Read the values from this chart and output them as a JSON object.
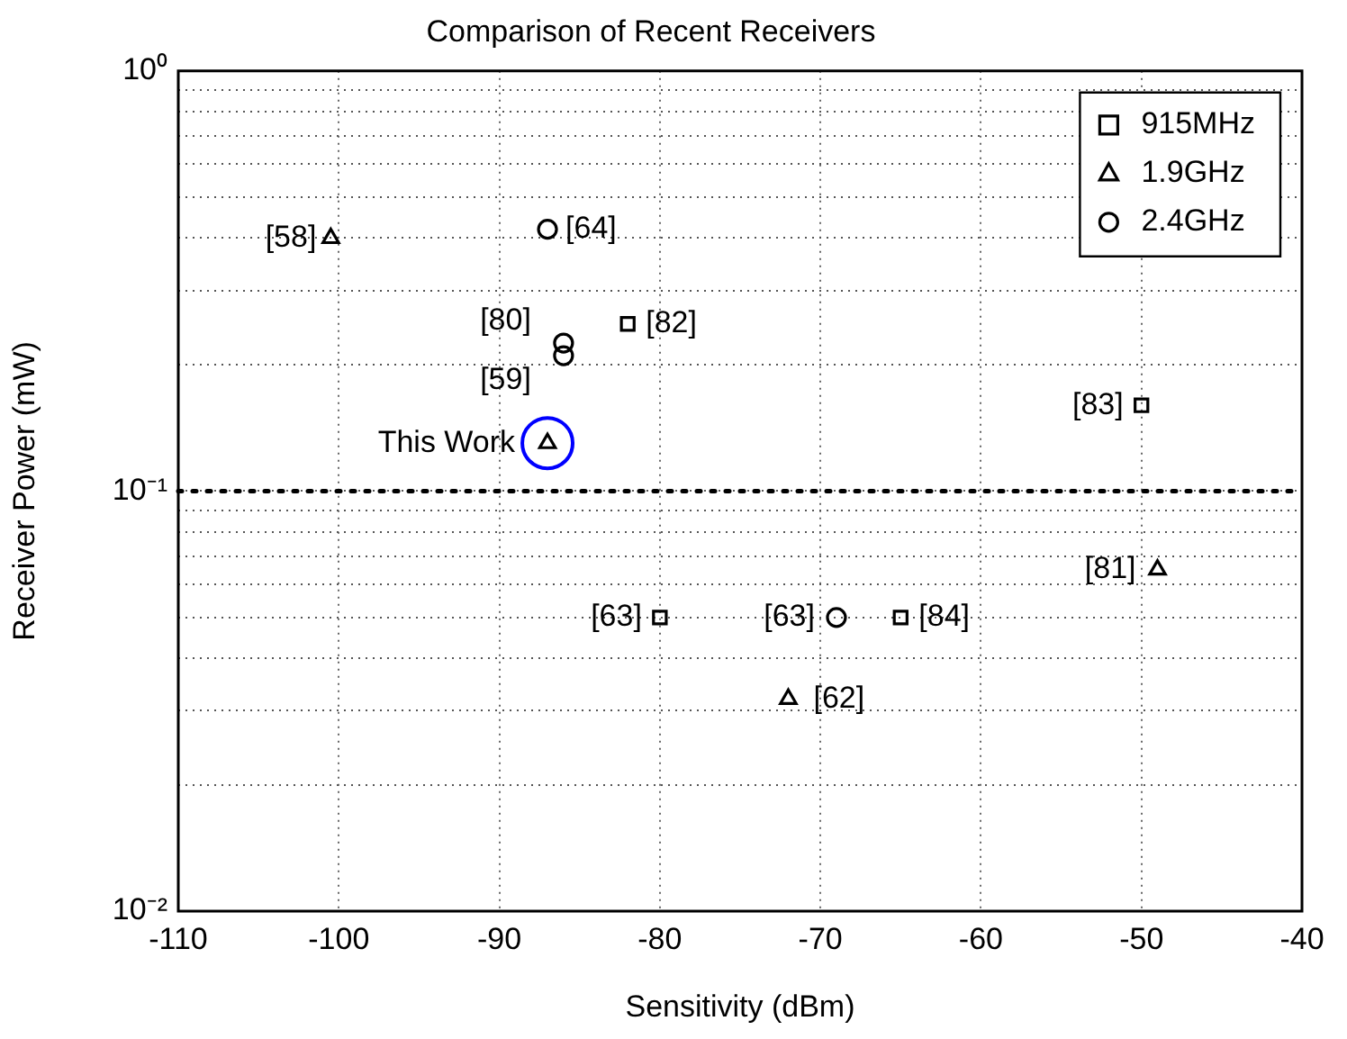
{
  "chart_data": {
    "type": "scatter",
    "title": "Comparison of Recent Receivers",
    "xlabel": "Sensitivity (dBm)",
    "ylabel": "Receiver Power (mW)",
    "log": "y",
    "xlim": [
      -110,
      -40
    ],
    "xticks": [
      -110,
      -100,
      -90,
      -80,
      -70,
      -60,
      -50,
      -40
    ],
    "ylim": [
      0.01,
      1
    ],
    "yticks": [
      {
        "value": 0.01,
        "label": "10⁻²"
      },
      {
        "value": 0.02,
        "label": null
      },
      {
        "value": 0.03,
        "label": null
      },
      {
        "value": 0.04,
        "label": null
      },
      {
        "value": 0.05,
        "label": null
      },
      {
        "value": 0.06,
        "label": null
      },
      {
        "value": 0.07,
        "label": null
      },
      {
        "value": 0.08,
        "label": null
      },
      {
        "value": 0.09,
        "label": null
      },
      {
        "value": 0.1,
        "label": "10⁻¹"
      },
      {
        "value": 0.2,
        "label": null
      },
      {
        "value": 0.3,
        "label": null
      },
      {
        "value": 0.4,
        "label": null
      },
      {
        "value": 0.5,
        "label": null
      },
      {
        "value": 0.6,
        "label": null
      },
      {
        "value": 0.7,
        "label": null
      },
      {
        "value": 0.8,
        "label": null
      },
      {
        "value": 0.9,
        "label": null
      },
      {
        "value": 1,
        "label": "10⁰"
      }
    ],
    "grid": true,
    "legend": "top right",
    "series": [
      {
        "name": "915MHz",
        "color": "#000000",
        "marker": "square",
        "x": [
          -82,
          -50,
          -80,
          -65
        ],
        "values": [
          0.25,
          0.16,
          0.05,
          0.05
        ]
      },
      {
        "name": "1.9GHz",
        "color": "#000000",
        "marker": "triangle",
        "x": [
          -100.5,
          -87,
          -49,
          -72
        ],
        "values": [
          0.4,
          0.13,
          0.065,
          0.032
        ]
      },
      {
        "name": "2.4GHz",
        "color": "#000000",
        "marker": "circle",
        "x": [
          -87,
          -86,
          -86,
          -69
        ],
        "values": [
          0.42,
          0.225,
          0.21,
          0.05
        ]
      },
      {
        "color": "#0000ff",
        "marker": "circle",
        "x": [
          -87
        ],
        "values": [
          0.13
        ]
      }
    ],
    "ref_lines": [
      {
        "axis": "y",
        "value": 0.1,
        "color": "#000000",
        "line_style": "dotted"
      }
    ],
    "annotations": [
      {
        "text": "[58]",
        "x": -100.5,
        "y": 0.4
      },
      {
        "text": "[64]",
        "x": -87,
        "y": 0.42
      },
      {
        "text": "[80]",
        "x": -86,
        "y": 0.225
      },
      {
        "text": "[59]",
        "x": -86,
        "y": 0.21
      },
      {
        "text": "[82]",
        "x": -82,
        "y": 0.25
      },
      {
        "text": "This Work",
        "x": -87,
        "y": 0.13
      },
      {
        "text": "[83]",
        "x": -50,
        "y": 0.16
      },
      {
        "text": "[81]",
        "x": -49,
        "y": 0.065
      },
      {
        "text": "[63]",
        "x": -80,
        "y": 0.05
      },
      {
        "text": "[63]",
        "x": -69,
        "y": 0.05
      },
      {
        "text": "[84]",
        "x": -65,
        "y": 0.05
      },
      {
        "text": "[62]",
        "x": -72,
        "y": 0.032
      }
    ]
  }
}
